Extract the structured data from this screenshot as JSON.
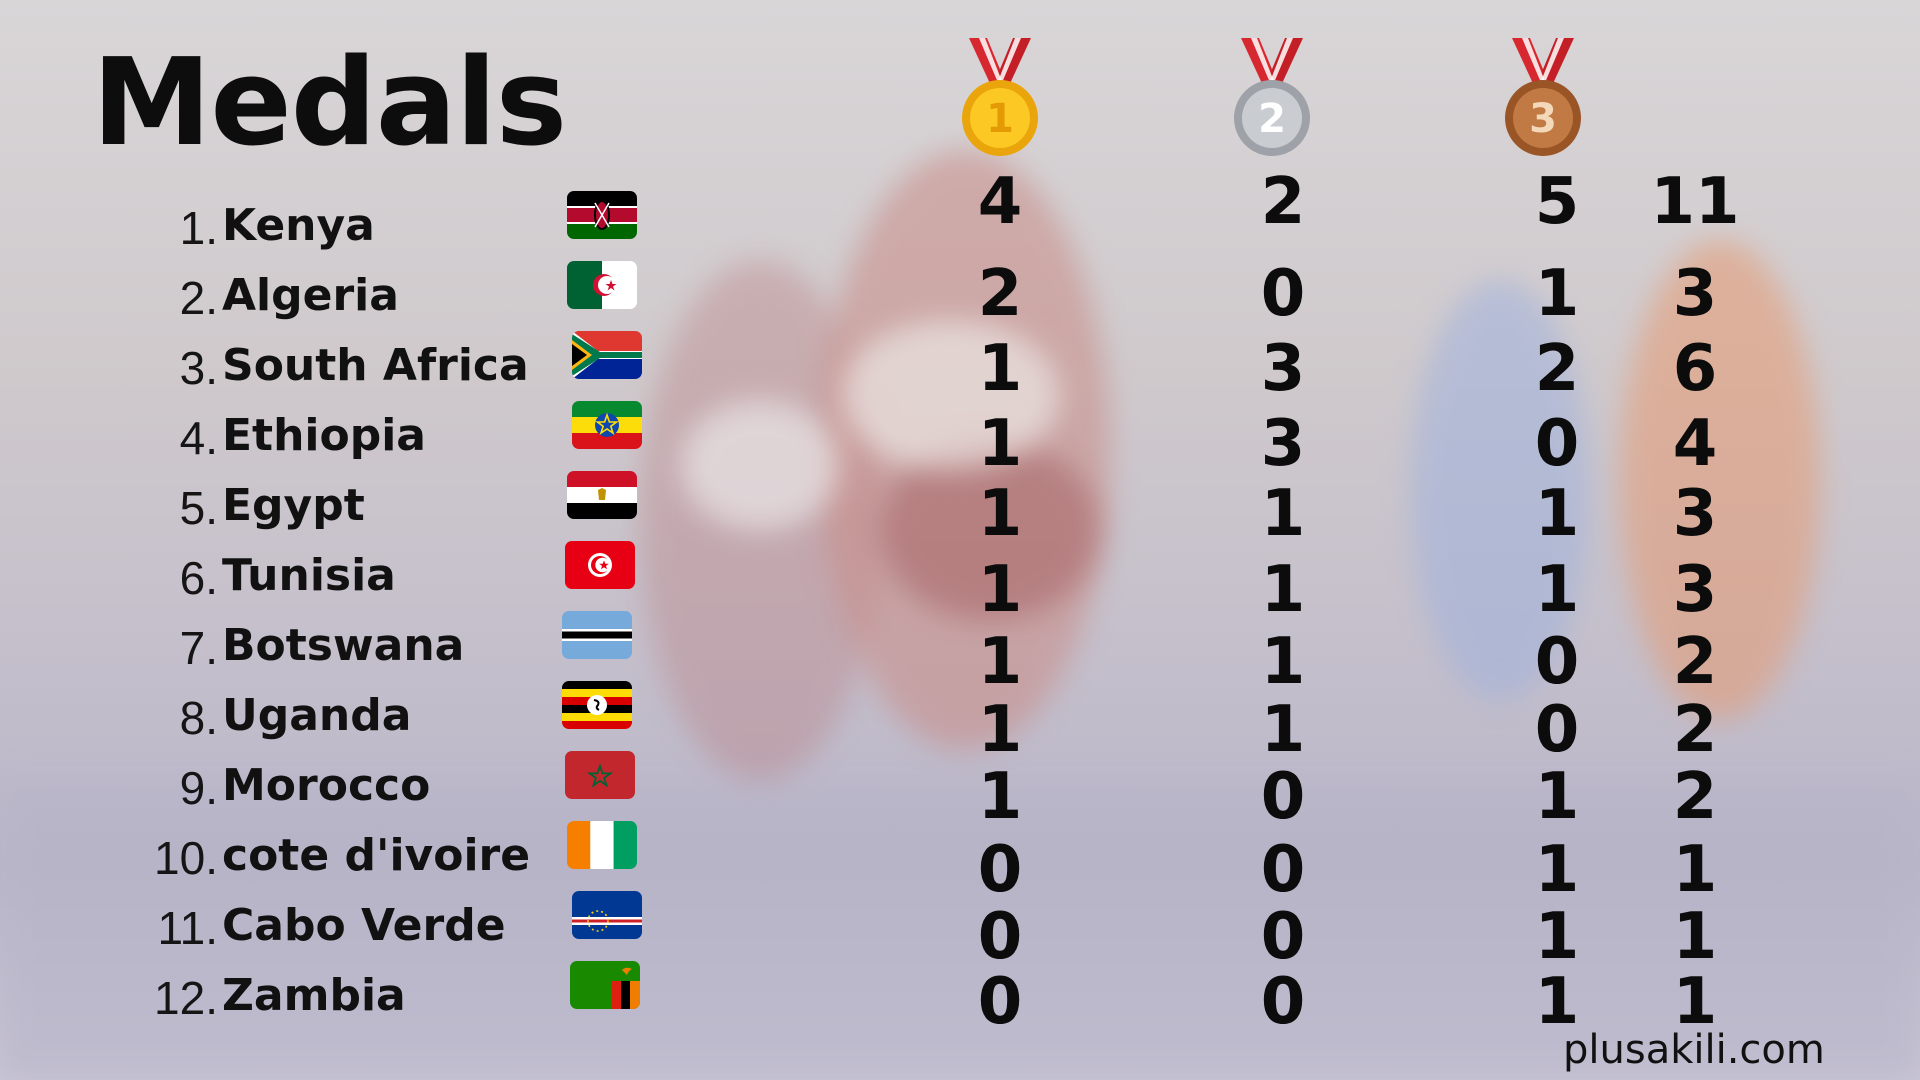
{
  "title": "Medals",
  "watermark": "plusakili.com",
  "medal_icons": [
    {
      "name": "gold",
      "numeral": "1",
      "color": "#f5b811"
    },
    {
      "name": "silver",
      "numeral": "2",
      "color": "#b9bcc2"
    },
    {
      "name": "bronze",
      "numeral": "3",
      "color": "#b86a35"
    }
  ],
  "rows": [
    {
      "rank": "1.",
      "country": "Kenya",
      "flag": "kenya-flag-icon",
      "gold": "4",
      "silver": "2",
      "bronze": "5",
      "total": "11"
    },
    {
      "rank": "2.",
      "country": "Algeria",
      "flag": "algeria-flag-icon",
      "gold": "2",
      "silver": "0",
      "bronze": "1",
      "total": "3"
    },
    {
      "rank": "3.",
      "country": "South Africa",
      "flag": "south-africa-flag-icon",
      "gold": "1",
      "silver": "3",
      "bronze": "2",
      "total": "6"
    },
    {
      "rank": "4.",
      "country": "Ethiopia",
      "flag": "ethiopia-flag-icon",
      "gold": "1",
      "silver": "3",
      "bronze": "0",
      "total": "4"
    },
    {
      "rank": "5.",
      "country": "Egypt",
      "flag": "egypt-flag-icon",
      "gold": "1",
      "silver": "1",
      "bronze": "1",
      "total": "3"
    },
    {
      "rank": "6.",
      "country": "Tunisia",
      "flag": "tunisia-flag-icon",
      "gold": "1",
      "silver": "1",
      "bronze": "1",
      "total": "3"
    },
    {
      "rank": "7.",
      "country": "Botswana",
      "flag": "botswana-flag-icon",
      "gold": "1",
      "silver": "1",
      "bronze": "0",
      "total": "2"
    },
    {
      "rank": "8.",
      "country": "Uganda",
      "flag": "uganda-flag-icon",
      "gold": "1",
      "silver": "1",
      "bronze": "0",
      "total": "2"
    },
    {
      "rank": "9.",
      "country": "Morocco",
      "flag": "morocco-flag-icon",
      "gold": "1",
      "silver": "0",
      "bronze": "1",
      "total": "2"
    },
    {
      "rank": "10.",
      "country": "cote d'ivoire",
      "flag": "cote-divoire-flag-icon",
      "gold": "0",
      "silver": "0",
      "bronze": "1",
      "total": "1"
    },
    {
      "rank": "11.",
      "country": "Cabo Verde",
      "flag": "cabo-verde-flag-icon",
      "gold": "0",
      "silver": "0",
      "bronze": "1",
      "total": "1"
    },
    {
      "rank": "12.",
      "country": "Zambia",
      "flag": "zambia-flag-icon",
      "gold": "0",
      "silver": "0",
      "bronze": "1",
      "total": "1"
    }
  ]
}
